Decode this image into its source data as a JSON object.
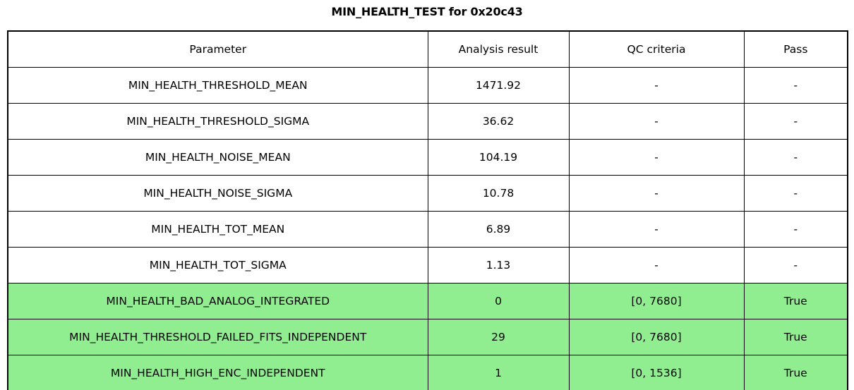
{
  "title": "MIN_HEALTH_TEST for 0x20c43",
  "colors": {
    "pass_highlight": "#90EE90",
    "border": "#000000",
    "text": "#000000",
    "background": "#FFFFFF"
  },
  "chart_data": {
    "type": "table",
    "title": "MIN_HEALTH_TEST for 0x20c43",
    "columns": [
      "Parameter",
      "Analysis result",
      "QC criteria",
      "Pass"
    ],
    "rows": [
      {
        "parameter": "MIN_HEALTH_THRESHOLD_MEAN",
        "analysis_result": "1471.92",
        "qc_criteria": "-",
        "pass": "-",
        "highlighted": false
      },
      {
        "parameter": "MIN_HEALTH_THRESHOLD_SIGMA",
        "analysis_result": "36.62",
        "qc_criteria": "-",
        "pass": "-",
        "highlighted": false
      },
      {
        "parameter": "MIN_HEALTH_NOISE_MEAN",
        "analysis_result": "104.19",
        "qc_criteria": "-",
        "pass": "-",
        "highlighted": false
      },
      {
        "parameter": "MIN_HEALTH_NOISE_SIGMA",
        "analysis_result": "10.78",
        "qc_criteria": "-",
        "pass": "-",
        "highlighted": false
      },
      {
        "parameter": "MIN_HEALTH_TOT_MEAN",
        "analysis_result": "6.89",
        "qc_criteria": "-",
        "pass": "-",
        "highlighted": false
      },
      {
        "parameter": "MIN_HEALTH_TOT_SIGMA",
        "analysis_result": "1.13",
        "qc_criteria": "-",
        "pass": "-",
        "highlighted": false
      },
      {
        "parameter": "MIN_HEALTH_BAD_ANALOG_INTEGRATED",
        "analysis_result": "0",
        "qc_criteria": "[0, 7680]",
        "pass": "True",
        "highlighted": true
      },
      {
        "parameter": "MIN_HEALTH_THRESHOLD_FAILED_FITS_INDEPENDENT",
        "analysis_result": "29",
        "qc_criteria": "[0, 7680]",
        "pass": "True",
        "highlighted": true
      },
      {
        "parameter": "MIN_HEALTH_HIGH_ENC_INDEPENDENT",
        "analysis_result": "1",
        "qc_criteria": "[0, 1536]",
        "pass": "True",
        "highlighted": true
      }
    ]
  }
}
